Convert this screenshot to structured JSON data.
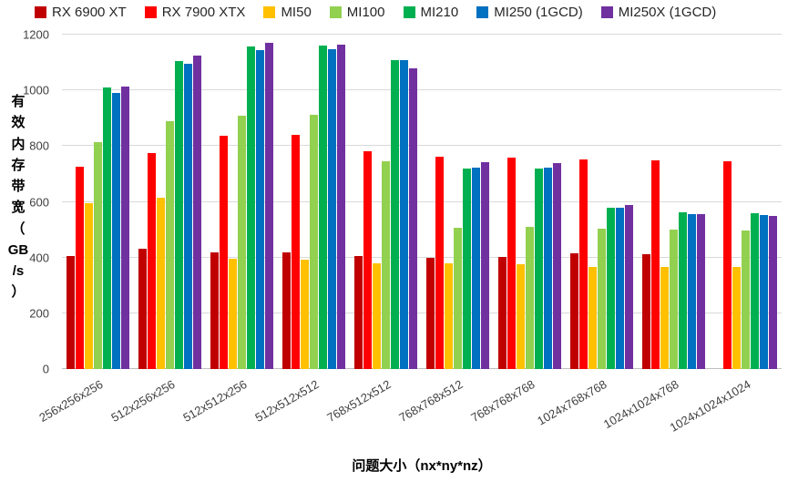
{
  "chart_data": {
    "type": "bar",
    "categories": [
      "256x256x256",
      "512x256x256",
      "512x512x256",
      "512x512x512",
      "768x512x512",
      "768x768x512",
      "768x768x768",
      "1024x768x768",
      "1024x1024x768",
      "1024x1024x1024"
    ],
    "series": [
      {
        "name": "RX 6900 XT",
        "color": "#c00000",
        "values": [
          405,
          430,
          420,
          420,
          405,
          400,
          402,
          415,
          412,
          0
        ]
      },
      {
        "name": "RX 7900 XTX",
        "color": "#ff0000",
        "values": [
          725,
          775,
          838,
          840,
          783,
          762,
          757,
          753,
          748,
          745
        ]
      },
      {
        "name": "MI50",
        "color": "#ffc000",
        "values": [
          595,
          615,
          395,
          392,
          378,
          378,
          375,
          367,
          365,
          367
        ]
      },
      {
        "name": "MI100",
        "color": "#92d050",
        "values": [
          815,
          890,
          908,
          912,
          745,
          508,
          510,
          503,
          500,
          498
        ]
      },
      {
        "name": "MI210",
        "color": "#00b050",
        "values": [
          1010,
          1105,
          1158,
          1160,
          1110,
          720,
          718,
          580,
          562,
          560
        ]
      },
      {
        "name": "MI250 (1GCD)",
        "color": "#0070c0",
        "values": [
          990,
          1095,
          1145,
          1148,
          1108,
          722,
          722,
          578,
          557,
          552
        ]
      },
      {
        "name": "MI250X (1GCD)",
        "color": "#7030a0",
        "values": [
          1015,
          1125,
          1170,
          1165,
          1080,
          742,
          740,
          590,
          555,
          550
        ]
      }
    ],
    "title": "",
    "xlabel": "问题大小（nx*ny*nz）",
    "ylabel": "有效内存带宽（GB/s）",
    "ylabel_vertical_chars": [
      "有",
      "效",
      "内",
      "存",
      "带",
      "宽",
      "（",
      "GB",
      "/s",
      "）"
    ],
    "ylim": [
      0,
      1200
    ],
    "yticks": [
      0,
      200,
      400,
      600,
      800,
      1000,
      1200
    ],
    "grid": true,
    "legend_position": "top"
  }
}
